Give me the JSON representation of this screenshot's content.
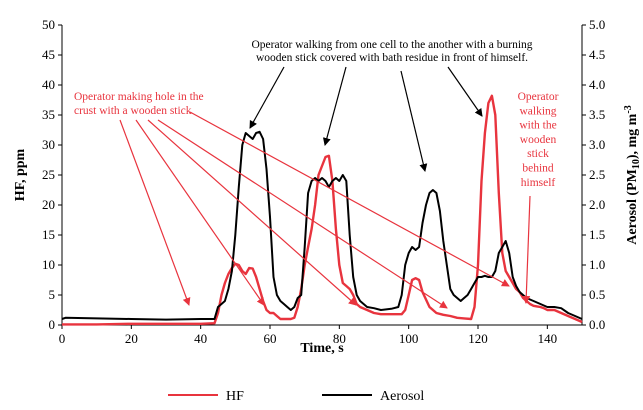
{
  "chart_data": {
    "type": "line",
    "xlabel": "Time, s",
    "ylabel_left": "HF, ppm",
    "ylabel_right_parts": [
      "Aerosol (PM",
      "10",
      "), mg m",
      "-3"
    ],
    "xlim": [
      0,
      150
    ],
    "xticks": [
      0,
      20,
      40,
      60,
      80,
      100,
      120,
      140
    ],
    "ylim_left": [
      0,
      50
    ],
    "yticks_left": [
      0,
      5,
      10,
      15,
      20,
      25,
      30,
      35,
      40,
      45,
      50
    ],
    "ylim_right": [
      0,
      5
    ],
    "yticks_right": [
      "0.0",
      "0.5",
      "1.0",
      "1.5",
      "2.0",
      "2.5",
      "3.0",
      "3.5",
      "4.0",
      "4.5",
      "5.0"
    ],
    "grid": false,
    "legend_position": "bottom",
    "series": [
      {
        "name": "HF",
        "color": "#e8343e",
        "axis": "left",
        "points": [
          [
            0,
            0.1
          ],
          [
            10,
            0.1
          ],
          [
            20,
            0.2
          ],
          [
            30,
            0.2
          ],
          [
            40,
            0.2
          ],
          [
            44,
            0.3
          ],
          [
            45,
            2
          ],
          [
            46,
            5
          ],
          [
            47,
            7
          ],
          [
            48,
            8.5
          ],
          [
            49,
            9.5
          ],
          [
            50,
            10.2
          ],
          [
            51,
            10
          ],
          [
            52,
            9
          ],
          [
            53,
            8.5
          ],
          [
            54,
            9.5
          ],
          [
            55,
            9.4
          ],
          [
            56,
            8
          ],
          [
            57,
            6
          ],
          [
            58,
            4
          ],
          [
            59,
            2.5
          ],
          [
            60,
            2
          ],
          [
            61,
            2
          ],
          [
            62,
            1.5
          ],
          [
            63,
            1
          ],
          [
            64,
            1
          ],
          [
            65,
            1
          ],
          [
            66,
            1
          ],
          [
            67,
            1.2
          ],
          [
            68,
            3
          ],
          [
            69,
            6
          ],
          [
            70,
            10
          ],
          [
            71,
            13
          ],
          [
            72,
            16
          ],
          [
            73,
            20
          ],
          [
            74,
            25
          ],
          [
            75,
            26.5
          ],
          [
            76,
            28
          ],
          [
            77,
            28.2
          ],
          [
            78,
            24
          ],
          [
            79,
            16
          ],
          [
            80,
            10
          ],
          [
            81,
            7
          ],
          [
            82,
            6.5
          ],
          [
            83,
            6
          ],
          [
            84,
            5
          ],
          [
            85,
            3.5
          ],
          [
            86,
            3
          ],
          [
            88,
            2.5
          ],
          [
            90,
            2
          ],
          [
            92,
            1.8
          ],
          [
            94,
            1.8
          ],
          [
            96,
            1.8
          ],
          [
            98,
            1.8
          ],
          [
            99,
            2.5
          ],
          [
            100,
            5
          ],
          [
            101,
            7.5
          ],
          [
            102,
            7.8
          ],
          [
            103,
            7.5
          ],
          [
            104,
            5.5
          ],
          [
            106,
            3
          ],
          [
            108,
            2
          ],
          [
            110,
            1.7
          ],
          [
            112,
            1.5
          ],
          [
            114,
            1.2
          ],
          [
            116,
            1.1
          ],
          [
            118,
            1
          ],
          [
            119,
            3
          ],
          [
            120,
            10
          ],
          [
            121,
            24
          ],
          [
            122,
            32
          ],
          [
            123,
            37
          ],
          [
            124,
            38.2
          ],
          [
            125,
            35
          ],
          [
            126,
            22
          ],
          [
            127,
            12
          ],
          [
            128,
            9
          ],
          [
            129,
            8
          ],
          [
            130,
            7
          ],
          [
            131,
            6
          ],
          [
            132,
            5.5
          ],
          [
            133,
            4.5
          ],
          [
            134,
            4
          ],
          [
            135,
            3.5
          ],
          [
            136,
            3.2
          ],
          [
            137,
            3.1
          ],
          [
            138,
            3
          ],
          [
            139,
            2.8
          ],
          [
            140,
            2.5
          ],
          [
            142,
            2.5
          ],
          [
            144,
            2
          ],
          [
            146,
            1.5
          ],
          [
            148,
            1
          ],
          [
            150,
            0.5
          ]
        ]
      },
      {
        "name": "Aerosol",
        "color": "#000000",
        "axis": "right",
        "points": [
          [
            0,
            0.1
          ],
          [
            1,
            0.12
          ],
          [
            10,
            0.11
          ],
          [
            20,
            0.1
          ],
          [
            30,
            0.09
          ],
          [
            40,
            0.1
          ],
          [
            44,
            0.1
          ],
          [
            45,
            0.3
          ],
          [
            46,
            0.35
          ],
          [
            47,
            0.4
          ],
          [
            48,
            0.6
          ],
          [
            49,
            0.9
          ],
          [
            50,
            1.5
          ],
          [
            51,
            2.3
          ],
          [
            52,
            3.0
          ],
          [
            53,
            3.2
          ],
          [
            54,
            3.15
          ],
          [
            55,
            3.1
          ],
          [
            56,
            3.2
          ],
          [
            57,
            3.22
          ],
          [
            58,
            3.1
          ],
          [
            59,
            2.6
          ],
          [
            60,
            1.8
          ],
          [
            61,
            0.8
          ],
          [
            62,
            0.5
          ],
          [
            63,
            0.4
          ],
          [
            64,
            0.35
          ],
          [
            65,
            0.3
          ],
          [
            66,
            0.25
          ],
          [
            67,
            0.3
          ],
          [
            68,
            0.45
          ],
          [
            69,
            0.5
          ],
          [
            70,
            1.3
          ],
          [
            71,
            2.2
          ],
          [
            72,
            2.4
          ],
          [
            73,
            2.45
          ],
          [
            74,
            2.4
          ],
          [
            75,
            2.45
          ],
          [
            76,
            2.4
          ],
          [
            77,
            2.3
          ],
          [
            78,
            2.4
          ],
          [
            79,
            2.45
          ],
          [
            80,
            2.4
          ],
          [
            81,
            2.5
          ],
          [
            82,
            2.4
          ],
          [
            83,
            1.5
          ],
          [
            84,
            0.8
          ],
          [
            85,
            0.5
          ],
          [
            86,
            0.4
          ],
          [
            87,
            0.35
          ],
          [
            88,
            0.3
          ],
          [
            90,
            0.28
          ],
          [
            92,
            0.25
          ],
          [
            95,
            0.27
          ],
          [
            97,
            0.3
          ],
          [
            98,
            0.5
          ],
          [
            99,
            1.0
          ],
          [
            100,
            1.2
          ],
          [
            101,
            1.3
          ],
          [
            102,
            1.25
          ],
          [
            103,
            1.3
          ],
          [
            104,
            1.7
          ],
          [
            105,
            2.0
          ],
          [
            106,
            2.2
          ],
          [
            107,
            2.25
          ],
          [
            108,
            2.2
          ],
          [
            109,
            1.9
          ],
          [
            110,
            1.4
          ],
          [
            111,
            1.0
          ],
          [
            112,
            0.6
          ],
          [
            113,
            0.5
          ],
          [
            114,
            0.45
          ],
          [
            115,
            0.4
          ],
          [
            116,
            0.45
          ],
          [
            117,
            0.5
          ],
          [
            118,
            0.6
          ],
          [
            119,
            0.7
          ],
          [
            120,
            0.8
          ],
          [
            121,
            0.8
          ],
          [
            122,
            0.82
          ],
          [
            123,
            0.8
          ],
          [
            124,
            0.8
          ],
          [
            125,
            0.9
          ],
          [
            126,
            1.2
          ],
          [
            127,
            1.3
          ],
          [
            128,
            1.4
          ],
          [
            129,
            1.2
          ],
          [
            130,
            0.8
          ],
          [
            131,
            0.65
          ],
          [
            132,
            0.55
          ],
          [
            134,
            0.45
          ],
          [
            136,
            0.4
          ],
          [
            138,
            0.35
          ],
          [
            140,
            0.3
          ],
          [
            142,
            0.3
          ],
          [
            144,
            0.28
          ],
          [
            146,
            0.2
          ],
          [
            148,
            0.15
          ],
          [
            150,
            0.1
          ]
        ]
      }
    ],
    "annotations": {
      "black_lines": [
        "Operator walking from one cell to the another with a burning",
        "wooden  stick  covered with bath residue in front of himself."
      ],
      "red_left_lines": [
        "Operator making hole in the",
        "crust with a wooden stick"
      ],
      "red_right_lines": [
        "Operator",
        "walking",
        "with the",
        "wooden",
        "stick",
        "behind",
        "himself"
      ]
    }
  }
}
